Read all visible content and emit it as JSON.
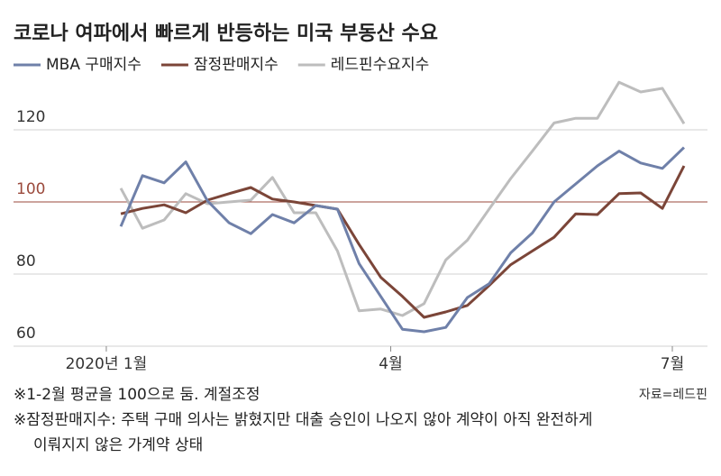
{
  "chart_data": {
    "type": "line",
    "title": "코로나 여파에서 빠르게 반등하는 미국 부동산 수요",
    "x": [
      0,
      1,
      2,
      3,
      4,
      5,
      6,
      7,
      8,
      9,
      10,
      11,
      12,
      13,
      14,
      15,
      16,
      17,
      18,
      19,
      20,
      21,
      22,
      23,
      24,
      25,
      26
    ],
    "series": [
      {
        "name": "MBA 구매지수",
        "color": "#6f80a9",
        "values": [
          93.2,
          107.3,
          105.3,
          111.1,
          100.3,
          94.2,
          91.2,
          96.5,
          94.2,
          99,
          98,
          82.9,
          73.8,
          64.7,
          64,
          65.2,
          73.5,
          77.3,
          85.9,
          91.4,
          100,
          105,
          110,
          114.1,
          110.8,
          109.3,
          115.1
        ]
      },
      {
        "name": "잠정판매지수",
        "color": "#7b4538",
        "values": [
          96.7,
          98.2,
          99.2,
          97,
          100.5,
          102.3,
          104,
          100.8,
          100,
          99,
          98,
          88.2,
          79.1,
          73.8,
          68,
          69.5,
          71.3,
          76.8,
          82.6,
          86.4,
          90.2,
          96.7,
          96.5,
          102.3,
          102.5,
          98.2,
          110
        ]
      },
      {
        "name": "레드핀수요지수",
        "color": "#bdbdbd",
        "values": [
          103.8,
          92.7,
          95,
          102.3,
          99.5,
          100,
          100.5,
          106.8,
          97,
          97,
          86.4,
          69.8,
          70.3,
          68.5,
          71.8,
          83.9,
          89.4,
          98,
          106.5,
          114.1,
          121.9,
          123.2,
          123.2,
          133.2,
          130.5,
          131.5,
          121.7
        ]
      }
    ],
    "xlim": [
      -1.5,
      26.5
    ],
    "xticks": [
      {
        "value": -0.67,
        "label": "2020년 1월"
      },
      {
        "value": 12.46,
        "label": "4월"
      },
      {
        "value": 25.46,
        "label": "7월"
      }
    ],
    "ylim": [
      60,
      135
    ],
    "yticks": [
      60,
      80,
      100,
      120
    ],
    "grid": true,
    "baseline": 100,
    "baseline_color": "#9b4a3c",
    "notes": [
      "※1-2월 평균을 100으로 둠. 계절조정",
      "※잠정판매지수: 주택 구매 의사는 밝혔지만 대출 승인이 나오지 않아 계약이 아직 완전하게",
      "이뤄지지 않은 가계약 상태"
    ],
    "source": "자료=레드핀"
  }
}
